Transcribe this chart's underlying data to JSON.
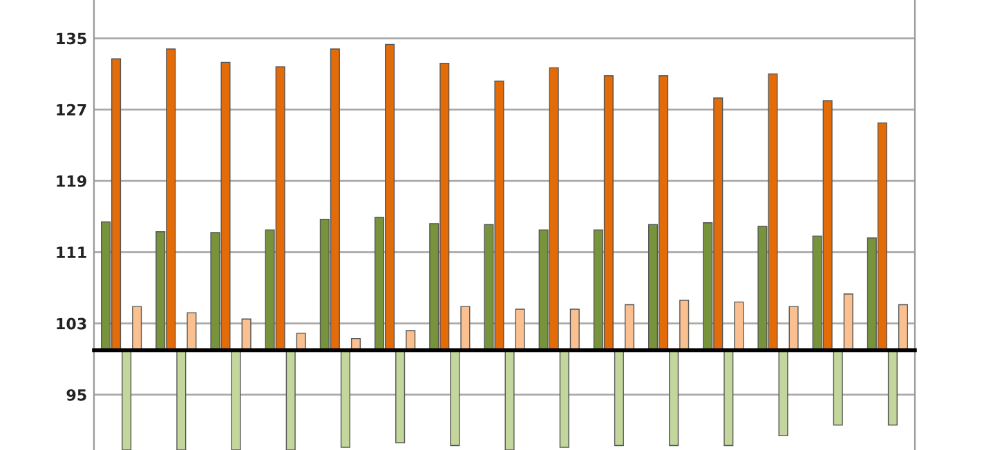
{
  "chart_data": {
    "type": "bar",
    "categories": [
      null,
      null,
      null,
      null,
      null,
      null,
      null,
      null,
      null,
      null,
      null,
      null,
      null,
      null,
      null
    ],
    "series": [
      {
        "color": "#77933c",
        "base": [
          100,
          100,
          100,
          100,
          100,
          100,
          100,
          100,
          100,
          100,
          100,
          100,
          100,
          100,
          100
        ],
        "values": [
          14.4,
          13.3,
          13.2,
          13.5,
          14.7,
          14.9,
          14.2,
          14.1,
          13.5,
          13.5,
          14.1,
          14.3,
          13.9,
          12.8,
          12.6
        ]
      },
      {
        "color": "#e36c09",
        "base": [
          100,
          100,
          100,
          100,
          100,
          100,
          100,
          100,
          100,
          100,
          100,
          100,
          100,
          100,
          100
        ],
        "values": [
          32.7,
          33.8,
          32.3,
          31.8,
          33.8,
          34.3,
          32.2,
          30.2,
          31.7,
          30.8,
          30.8,
          28.3,
          31.0,
          28.0,
          25.5
        ]
      },
      {
        "color": "#c3d69b",
        "base": [
          100,
          100,
          100,
          100,
          100,
          100,
          100,
          100,
          100,
          100,
          100,
          100,
          100,
          100,
          100
        ],
        "values": [
          -11.2,
          -11.2,
          -11.2,
          -11.2,
          -10.9,
          -10.4,
          -10.7,
          -11.2,
          -10.9,
          -10.7,
          -10.7,
          -10.7,
          -9.6,
          -8.4,
          -8.4
        ]
      },
      {
        "color": "#fac090",
        "base": [
          100,
          100,
          100,
          100,
          100,
          100,
          100,
          100,
          100,
          100,
          100,
          100,
          100,
          100,
          100
        ],
        "values": [
          4.9,
          4.2,
          3.5,
          1.9,
          1.3,
          2.2,
          4.9,
          4.6,
          4.6,
          5.1,
          5.6,
          5.4,
          4.9,
          6.3,
          5.1
        ]
      }
    ],
    "ylim": [
      88.8,
      139.3
    ],
    "yticks": [
      95,
      103,
      111,
      119,
      127,
      135
    ],
    "grid": "y",
    "ref_lines": [
      {
        "axis": "y",
        "value": 100,
        "color": "#000000"
      }
    ],
    "tick_labels": "y"
  }
}
